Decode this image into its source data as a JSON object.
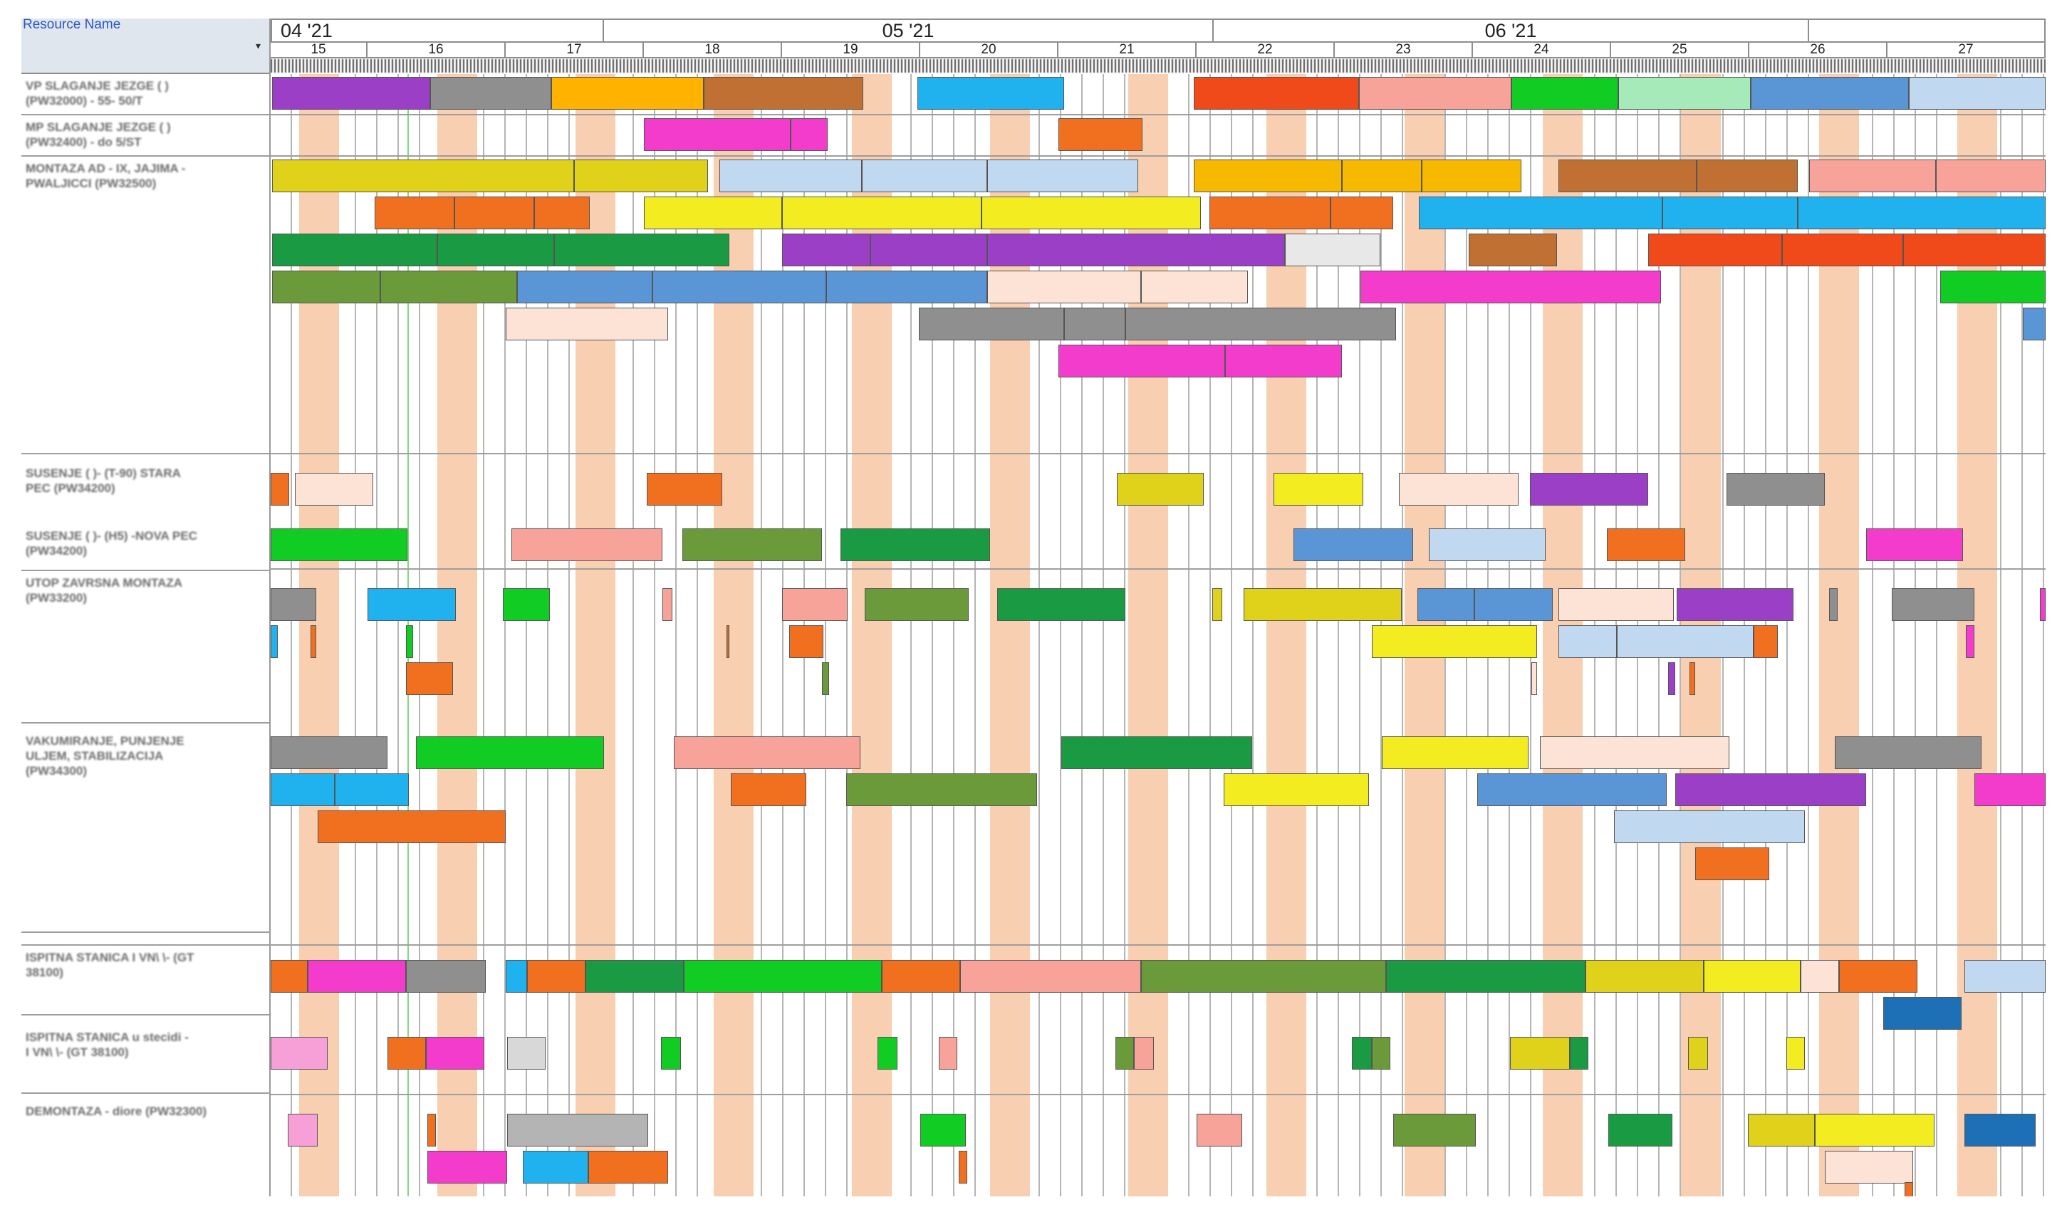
{
  "header": {
    "resource_name_label": "Resource Name"
  },
  "months": [
    "04 '21",
    "05 '21",
    "06 '21"
  ],
  "weeks": [
    "15",
    "16",
    "17",
    "18",
    "19",
    "20",
    "21",
    "22",
    "23",
    "24",
    "25",
    "26",
    "27"
  ],
  "resources": [
    {
      "name": "VP SLAGANJE JEZGE ( )\n(PW32000) - 55- 50/T"
    },
    {
      "name": "MP SLAGANJE JEZGE ( )\n(PW32400) - do 5/ST"
    },
    {
      "name": "MONTAZA AD - IX, JAJIMA -\nPWALJICCI (PW32500)"
    },
    {
      "name": "SUSENJE ( )- (T-90) STARA\nPEC (PW34200)"
    },
    {
      "name": "SUSENJE ( )- (H5) -NOVA PEC\n(PW34200)"
    },
    {
      "name": "UTOP ZAVRSNA MONTAZA\n(PW33200)"
    },
    {
      "name": "VAKUMIRANJE, PUNJENJE\nULJEM, STABILIZACIJA\n(PW34300)"
    },
    {
      "name": "ISPITNA STANICA I VN\\ \\- (GT\n38100)"
    },
    {
      "name": "ISPITNA STANICA u stecidi -\nI VN\\ \\- (GT 38100)"
    },
    {
      "name": "DEMONTAZA - diore (PW32300)"
    }
  ],
  "colors": {
    "header_bg": "#dfe6ee",
    "weekend": "#f8cfb0",
    "grid_line": "#b5b5b5",
    "today_line": "#7fdc7f",
    "header_label": "#2a57c8"
  }
}
